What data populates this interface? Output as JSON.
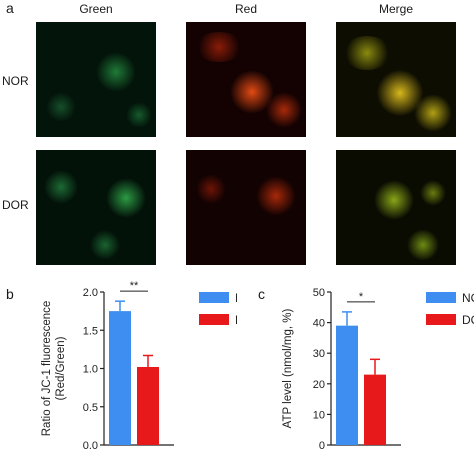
{
  "figure": {
    "panel_a": {
      "letter": "a",
      "columns": [
        "Green",
        "Red",
        "Merge"
      ],
      "rows": [
        "NOR",
        "DOR"
      ]
    }
  },
  "chart_data": [
    {
      "panel": "b",
      "type": "bar",
      "categories": [
        "NOR",
        "DOR"
      ],
      "values": [
        1.75,
        1.02
      ],
      "errors": [
        0.13,
        0.15
      ],
      "colors": [
        "#3d8ef0",
        "#e8191b"
      ],
      "ylabel_line1": "Ratio of JC-1 fluorescence",
      "ylabel_line2": "(Red/Green)",
      "ylim": [
        0,
        2.0
      ],
      "yticks": [
        "0.0",
        "0.5",
        "1.0",
        "1.5",
        "2.0"
      ],
      "significance": "**",
      "legend": [
        "NOR",
        "DOR"
      ],
      "legend_position": "top-right"
    },
    {
      "panel": "c",
      "type": "bar",
      "categories": [
        "NOR",
        "DOR"
      ],
      "values": [
        39,
        23
      ],
      "errors": [
        4.5,
        5
      ],
      "colors": [
        "#3d8ef0",
        "#e8191b"
      ],
      "ylabel": "ATP level (nmol/mg, %)",
      "ylim": [
        0,
        50
      ],
      "yticks": [
        "0",
        "10",
        "20",
        "30",
        "40",
        "50"
      ],
      "significance": "*",
      "legend": [
        "NOR",
        "DOR"
      ],
      "legend_position": "top-right"
    }
  ]
}
